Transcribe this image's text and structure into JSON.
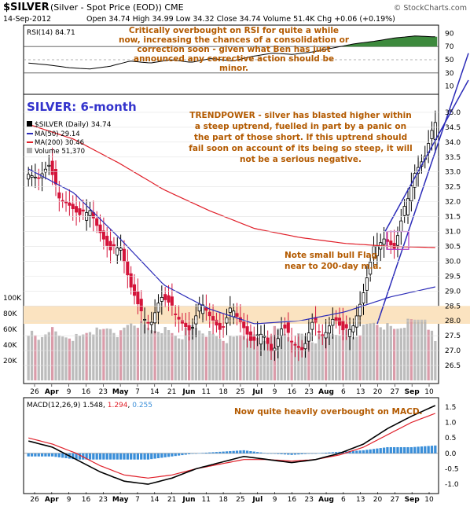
{
  "header": {
    "symbol": "$SILVER",
    "description": "(Silver - Spot Price (EOD)) CME",
    "date": "14-Sep-2012",
    "stats": "Open 34.74  High 34.99  Low 34.32  Close 34.74  Volume 51.4K  Chg +0.06 (+0.19%)",
    "brand": "© StockCharts.com"
  },
  "colors": {
    "annotation": "#b35a00",
    "title": "#3333cc",
    "ma50": "#2b2bb8",
    "ma200": "#e0202a",
    "up_candle": "#000000",
    "down_candle": "#d4143a",
    "volume": "#b0b0b0",
    "zone": "#fbe3c0",
    "rsi_fill_high": "#3d8a3d",
    "rsi_fill_low": "#7a3a3a",
    "macd_hist": "#3b8fd9"
  },
  "rsi_panel": {
    "label": "RSI(14) 84.71",
    "annotation": "Critically overbought on RSI for quite a while now, increasing the chances of a consolidation or correction soon - given what Ben has just announced any corrective action should be minor.",
    "ticks": [
      "90",
      "70",
      "50",
      "30",
      "10"
    ]
  },
  "price_panel": {
    "title": "SILVER: 6-month",
    "legend": {
      "symbol": "$SILVER (Daily) 34.74",
      "ma50": "MA(50) 29.14",
      "ma200": "MA(200) 30.46",
      "volume": "Volume 51,370"
    },
    "annotation_main": "TRENDPOWER - silver has blasted higher within a steep uptrend, fuelled in part by a panic on the part of those short. If this uptrend should fail soon on account of its being so steep, it will not be a serious negative.",
    "annotation_flag": "Note small bull Flag near to 200-day m.a.",
    "price_ticks": [
      "35.0",
      "34.5",
      "34.0",
      "33.5",
      "33.0",
      "32.5",
      "32.0",
      "31.5",
      "31.0",
      "30.5",
      "30.0",
      "29.5",
      "29.0",
      "28.5",
      "28.0",
      "27.5",
      "27.0",
      "26.5"
    ],
    "volume_ticks": [
      "100K",
      "80K",
      "60K",
      "40K",
      "20K"
    ],
    "x_ticks": [
      "26",
      "Apr",
      "9",
      "16",
      "23",
      "May",
      "7",
      "14",
      "21",
      "Jun",
      "11",
      "18",
      "25",
      "Jul",
      "9",
      "16",
      "23",
      "Aug",
      "6",
      "13",
      "20",
      "27",
      "Sep",
      "10"
    ]
  },
  "macd_panel": {
    "label_prefix": "MACD(12,26,9)",
    "macd_value": "1.548",
    "signal_value": "1.294",
    "hist_value": "0.255",
    "annotation": "Now quite heavily overbought on MACD.",
    "ticks": [
      "1.5",
      "1.0",
      "0.5",
      "0.0",
      "-0.5",
      "-1.0"
    ],
    "x_ticks": [
      "26",
      "Apr",
      "9",
      "16",
      "23",
      "May",
      "7",
      "14",
      "21",
      "Jun",
      "11",
      "18",
      "25",
      "Jul",
      "9",
      "16",
      "23",
      "Aug",
      "6",
      "13",
      "20",
      "27",
      "Sep",
      "10"
    ]
  },
  "chart_data": {
    "type": "candlestick",
    "title": "SILVER: 6-month",
    "ylim": [
      26.0,
      35.5
    ],
    "x_tick_labels": [
      "26",
      "Apr",
      "9",
      "16",
      "23",
      "May",
      "7",
      "14",
      "21",
      "Jun",
      "11",
      "18",
      "25",
      "Jul",
      "9",
      "16",
      "23",
      "Aug",
      "6",
      "13",
      "20",
      "27",
      "Sep",
      "10"
    ],
    "close_anchors": [
      33.0,
      32.8,
      33.2,
      32.2,
      31.9,
      31.5,
      31.8,
      31.0,
      30.3,
      30.6,
      29.2,
      28.3,
      27.9,
      28.8,
      28.5,
      28.0,
      27.6,
      28.7,
      28.1,
      27.6,
      28.5,
      27.9,
      27.2,
      27.7,
      26.9,
      27.8,
      27.3,
      27.0,
      28.0,
      27.5,
      28.1,
      27.6,
      27.9,
      29.0,
      30.5,
      30.8,
      30.4,
      31.8,
      33.0,
      33.5,
      34.74
    ],
    "ma50": [
      33.1,
      32.3,
      30.8,
      29.2,
      28.4,
      27.9,
      28.0,
      28.3,
      28.8,
      29.14
    ],
    "ma200": [
      34.6,
      34.1,
      33.3,
      32.4,
      31.7,
      31.1,
      30.8,
      30.6,
      30.5,
      30.46
    ],
    "volume_k": [
      68,
      55,
      72,
      60,
      62,
      58,
      70,
      66,
      74,
      63,
      80,
      77,
      69,
      72,
      65,
      60,
      75,
      70,
      62,
      58,
      55,
      64,
      60,
      52,
      70,
      66,
      58,
      62,
      55,
      60,
      66,
      70,
      60,
      72,
      80,
      76,
      70,
      78,
      82,
      88,
      51.37
    ],
    "rsi": [
      45,
      42,
      38,
      36,
      40,
      48,
      45,
      50,
      46,
      52,
      48,
      55,
      60,
      58,
      62,
      68,
      74,
      78,
      83,
      86,
      84.71
    ],
    "macd_line": [
      0.4,
      0.2,
      -0.2,
      -0.6,
      -0.9,
      -1.0,
      -0.8,
      -0.5,
      -0.3,
      -0.1,
      -0.2,
      -0.3,
      -0.2,
      0.0,
      0.3,
      0.8,
      1.2,
      1.548
    ],
    "signal_line": [
      0.5,
      0.3,
      0.0,
      -0.4,
      -0.7,
      -0.8,
      -0.7,
      -0.5,
      -0.35,
      -0.2,
      -0.2,
      -0.25,
      -0.2,
      -0.05,
      0.2,
      0.6,
      1.0,
      1.294
    ],
    "grid": true
  }
}
